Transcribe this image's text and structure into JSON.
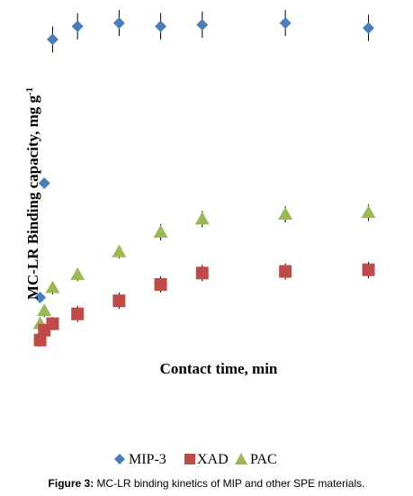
{
  "caption": {
    "prefix": "Figure 3:",
    "text": " MC-LR binding kinetics of MIP and other SPE materials."
  },
  "colors": {
    "MIP-3": "#4a7ebb",
    "XAD": "#be4b48",
    "PAC": "#98b954",
    "error_bar": "#000000"
  },
  "chart_data": {
    "type": "scatter",
    "title": "",
    "xlabel": "Contact time, min",
    "ylabel": "MC-LR Binding capacity, mg g",
    "ylabel_superscript": "-1",
    "grid": false,
    "show_ticks": false,
    "legend_position": "bottom",
    "xlim": [
      0,
      420
    ],
    "ylim": [
      0,
      100
    ],
    "series": [
      {
        "name": "MIP-3",
        "marker": "diamond",
        "points": [
          {
            "x": 5,
            "y": 15,
            "err": 1.5
          },
          {
            "x": 10,
            "y": 50,
            "err": 1.5
          },
          {
            "x": 20,
            "y": 94,
            "err": 4
          },
          {
            "x": 50,
            "y": 98,
            "err": 4
          },
          {
            "x": 100,
            "y": 99,
            "err": 4
          },
          {
            "x": 150,
            "y": 98,
            "err": 4
          },
          {
            "x": 200,
            "y": 98.5,
            "err": 4
          },
          {
            "x": 300,
            "y": 99,
            "err": 4
          },
          {
            "x": 400,
            "y": 97.5,
            "err": 4
          }
        ]
      },
      {
        "name": "XAD",
        "marker": "square",
        "points": [
          {
            "x": 5,
            "y": 2,
            "err": 2
          },
          {
            "x": 10,
            "y": 5,
            "err": 2
          },
          {
            "x": 20,
            "y": 7,
            "err": 2
          },
          {
            "x": 50,
            "y": 10,
            "err": 2.5
          },
          {
            "x": 100,
            "y": 14,
            "err": 2.5
          },
          {
            "x": 150,
            "y": 19,
            "err": 2.5
          },
          {
            "x": 200,
            "y": 22.5,
            "err": 2.5
          },
          {
            "x": 300,
            "y": 23,
            "err": 2.5
          },
          {
            "x": 400,
            "y": 23.5,
            "err": 2.5
          }
        ]
      },
      {
        "name": "PAC",
        "marker": "triangle",
        "points": [
          {
            "x": 5,
            "y": 7,
            "err": 2
          },
          {
            "x": 10,
            "y": 11,
            "err": 2
          },
          {
            "x": 20,
            "y": 18,
            "err": 2
          },
          {
            "x": 50,
            "y": 22,
            "err": 2
          },
          {
            "x": 100,
            "y": 29,
            "err": 2
          },
          {
            "x": 150,
            "y": 35,
            "err": 2.5
          },
          {
            "x": 200,
            "y": 39,
            "err": 2.5
          },
          {
            "x": 300,
            "y": 40.5,
            "err": 2.5
          },
          {
            "x": 400,
            "y": 41,
            "err": 2.5
          }
        ]
      }
    ]
  }
}
